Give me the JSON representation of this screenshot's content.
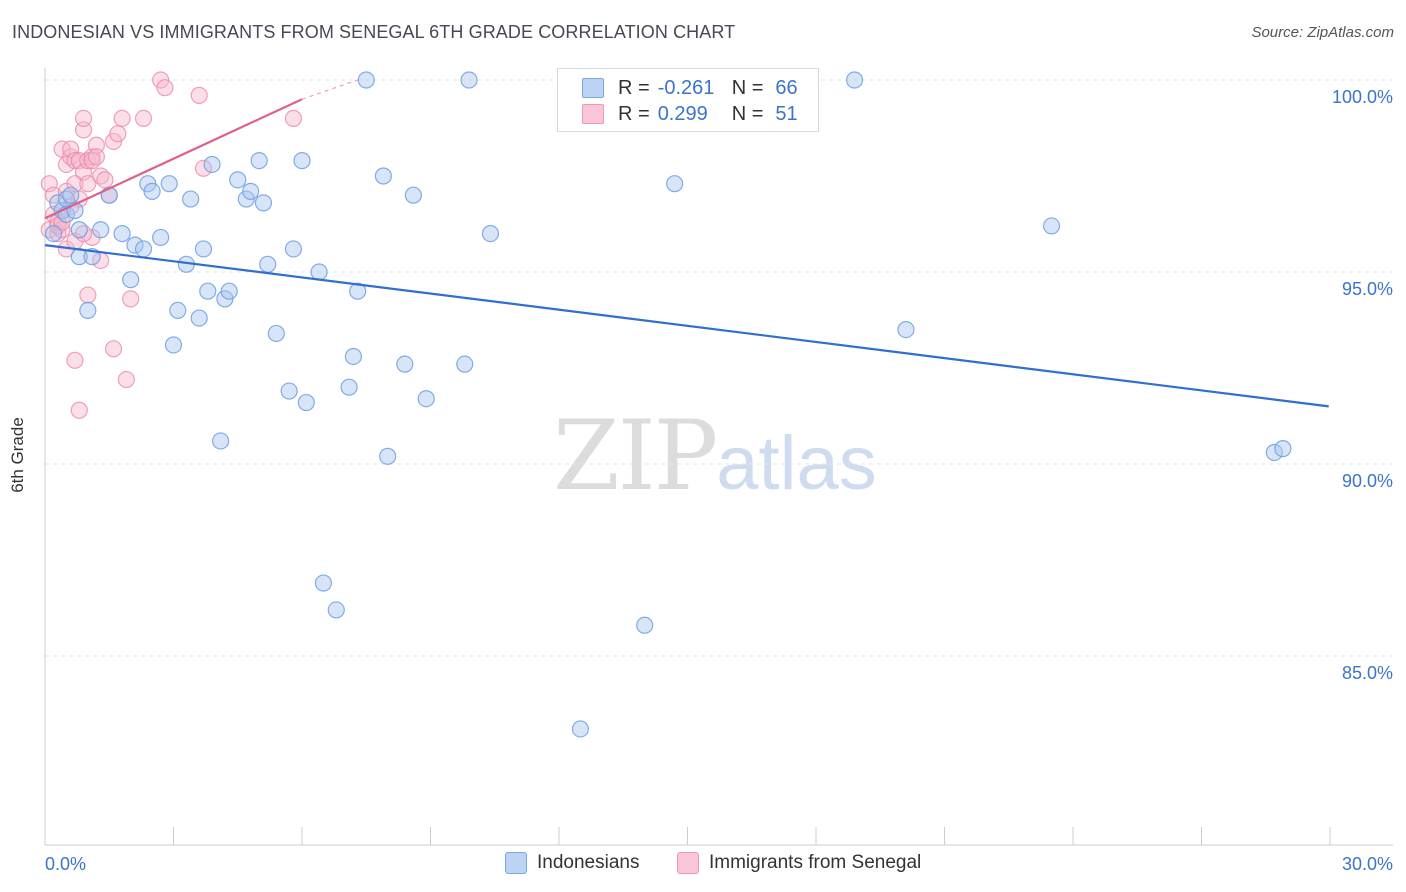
{
  "title": "INDONESIAN VS IMMIGRANTS FROM SENEGAL 6TH GRADE CORRELATION CHART",
  "source": "Source: ZipAtlas.com",
  "watermark": {
    "zip": "ZIP",
    "atlas": "atlas"
  },
  "legend": {
    "rows": [
      {
        "r_label": "R =",
        "r_value": "-0.261",
        "n_label": "N =",
        "n_value": "66"
      },
      {
        "r_label": "R =",
        "r_value": "0.299",
        "n_label": "N =",
        "n_value": "51"
      }
    ]
  },
  "chart_data": {
    "type": "scatter",
    "title": "INDONESIAN VS IMMIGRANTS FROM SENEGAL 6TH GRADE CORRELATION CHART",
    "xlabel": "",
    "ylabel": "6th Grade",
    "xlim": [
      0,
      30
    ],
    "ylim": [
      80,
      100.8
    ],
    "x_tick_labels": [
      "0.0%",
      "30.0%"
    ],
    "y_ticks": [
      85,
      90,
      95,
      100
    ],
    "y_tick_labels": [
      "85.0%",
      "90.0%",
      "95.0%",
      "100.0%"
    ],
    "colors": {
      "blue_fill": "#a9c6ef",
      "blue_stroke": "#6f9fe0",
      "blue_line": "#2f6fd1",
      "pink_fill": "#f6b9cb",
      "pink_stroke": "#ec8aaa",
      "pink_line": "#e0608c"
    },
    "series": [
      {
        "name": "Indonesians",
        "r": -0.261,
        "n": 66,
        "trend": {
          "x": [
            0,
            29.97
          ],
          "y": [
            95.7,
            91.5
          ]
        },
        "points": [
          [
            0.3,
            96.8
          ],
          [
            0.4,
            96.6
          ],
          [
            0.5,
            96.5
          ],
          [
            0.5,
            96.9
          ],
          [
            0.6,
            97.0
          ],
          [
            0.7,
            96.6
          ],
          [
            0.8,
            96.1
          ],
          [
            0.8,
            95.4
          ],
          [
            1.0,
            94.0
          ],
          [
            1.1,
            95.4
          ],
          [
            1.3,
            96.1
          ],
          [
            1.5,
            97.0
          ],
          [
            1.8,
            96.0
          ],
          [
            2.0,
            94.8
          ],
          [
            2.1,
            95.7
          ],
          [
            2.3,
            95.6
          ],
          [
            2.4,
            97.3
          ],
          [
            2.5,
            97.1
          ],
          [
            2.7,
            95.9
          ],
          [
            2.9,
            97.3
          ],
          [
            3.0,
            93.1
          ],
          [
            3.1,
            94.0
          ],
          [
            3.3,
            95.2
          ],
          [
            3.4,
            96.9
          ],
          [
            3.6,
            93.8
          ],
          [
            3.7,
            95.6
          ],
          [
            3.8,
            94.5
          ],
          [
            3.9,
            97.8
          ],
          [
            4.1,
            90.6
          ],
          [
            4.2,
            94.3
          ],
          [
            4.3,
            94.5
          ],
          [
            4.5,
            97.4
          ],
          [
            4.7,
            96.9
          ],
          [
            4.8,
            97.1
          ],
          [
            5.0,
            97.9
          ],
          [
            5.1,
            96.8
          ],
          [
            5.2,
            95.2
          ],
          [
            5.4,
            93.4
          ],
          [
            5.7,
            91.9
          ],
          [
            5.8,
            95.6
          ],
          [
            6.0,
            97.9
          ],
          [
            6.1,
            91.6
          ],
          [
            6.4,
            95.0
          ],
          [
            6.5,
            86.9
          ],
          [
            6.8,
            86.2
          ],
          [
            7.1,
            92.0
          ],
          [
            7.2,
            92.8
          ],
          [
            7.3,
            94.5
          ],
          [
            7.5,
            100.0
          ],
          [
            7.9,
            97.5
          ],
          [
            8.0,
            90.2
          ],
          [
            8.4,
            92.6
          ],
          [
            8.6,
            97.0
          ],
          [
            8.9,
            91.7
          ],
          [
            9.8,
            92.6
          ],
          [
            9.9,
            100.0
          ],
          [
            10.4,
            96.0
          ],
          [
            12.5,
            83.1
          ],
          [
            14.0,
            85.8
          ],
          [
            14.7,
            97.3
          ],
          [
            18.9,
            100.0
          ],
          [
            20.1,
            93.5
          ],
          [
            23.5,
            96.2
          ],
          [
            28.7,
            90.3
          ],
          [
            28.9,
            90.4
          ],
          [
            0.2,
            96.0
          ]
        ]
      },
      {
        "name": "Immigrants from Senegal",
        "r": 0.299,
        "n": 51,
        "trend": {
          "x": [
            0,
            6.0
          ],
          "y": [
            96.4,
            99.5
          ]
        },
        "trend_extension": {
          "x": [
            6.0,
            7.3
          ],
          "y": [
            99.5,
            100.0
          ]
        },
        "points": [
          [
            0.1,
            97.3
          ],
          [
            0.1,
            96.1
          ],
          [
            0.2,
            97.0
          ],
          [
            0.2,
            96.5
          ],
          [
            0.3,
            96.3
          ],
          [
            0.3,
            96.0
          ],
          [
            0.3,
            96.2
          ],
          [
            0.4,
            96.1
          ],
          [
            0.4,
            98.2
          ],
          [
            0.5,
            97.1
          ],
          [
            0.5,
            97.8
          ],
          [
            0.5,
            95.6
          ],
          [
            0.6,
            98.0
          ],
          [
            0.6,
            98.2
          ],
          [
            0.7,
            97.9
          ],
          [
            0.7,
            97.3
          ],
          [
            0.7,
            92.7
          ],
          [
            0.7,
            95.8
          ],
          [
            0.8,
            97.9
          ],
          [
            0.8,
            96.9
          ],
          [
            0.8,
            91.4
          ],
          [
            0.9,
            98.7
          ],
          [
            0.9,
            97.6
          ],
          [
            0.9,
            99.0
          ],
          [
            1.0,
            97.3
          ],
          [
            1.0,
            94.4
          ],
          [
            1.0,
            97.9
          ],
          [
            1.1,
            98.0
          ],
          [
            1.1,
            95.9
          ],
          [
            1.1,
            97.9
          ],
          [
            1.2,
            98.3
          ],
          [
            1.2,
            98.0
          ],
          [
            1.3,
            97.5
          ],
          [
            1.3,
            95.3
          ],
          [
            1.4,
            97.4
          ],
          [
            1.5,
            97.0
          ],
          [
            1.6,
            93.0
          ],
          [
            1.6,
            98.4
          ],
          [
            1.7,
            98.6
          ],
          [
            1.8,
            99.0
          ],
          [
            1.9,
            92.2
          ],
          [
            2.0,
            94.3
          ],
          [
            2.3,
            99.0
          ],
          [
            2.7,
            100.0
          ],
          [
            2.8,
            99.8
          ],
          [
            3.6,
            99.6
          ],
          [
            3.7,
            97.7
          ],
          [
            5.8,
            99.0
          ],
          [
            0.4,
            96.3
          ],
          [
            0.6,
            96.7
          ],
          [
            0.9,
            96.0
          ]
        ]
      }
    ]
  },
  "bottom_legend": {
    "items": [
      "Indonesians",
      "Immigrants from Senegal"
    ]
  }
}
